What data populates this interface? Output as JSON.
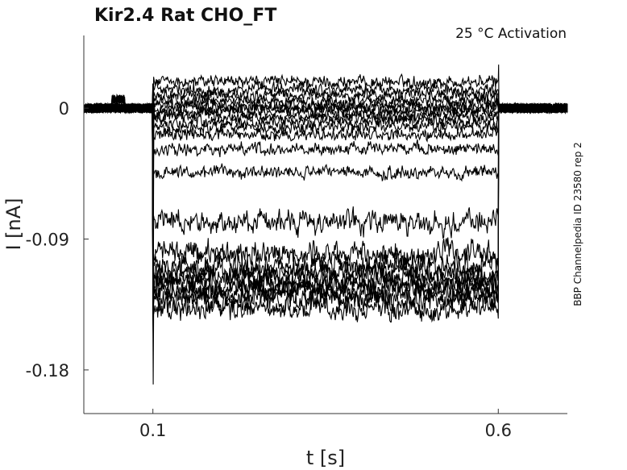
{
  "chart_data": {
    "type": "line",
    "title": "Kir2.4  Rat  CHO_FT",
    "annotation": "25 °C  Activation",
    "side_label": "BBP Channelpedia ID 23580 rep 2",
    "xlabel": "t [s]",
    "ylabel": "I [nA]",
    "xlim": [
      0.0,
      0.7
    ],
    "ylim": [
      -0.21,
      0.05
    ],
    "xticks": [
      0.1,
      0.6
    ],
    "xtick_labels": [
      "0.1",
      "0.6"
    ],
    "yticks": [
      0,
      -0.09,
      -0.18
    ],
    "ytick_labels": [
      "0",
      "-0.09",
      "-0.18"
    ],
    "grid": false,
    "step_window": [
      0.1,
      0.6
    ],
    "step_levels": [
      0.018,
      0.013,
      0.009,
      0.005,
      0.002,
      0.0,
      -0.003,
      -0.006,
      -0.009,
      -0.013,
      -0.018,
      -0.028,
      -0.044,
      -0.078,
      -0.1,
      -0.108,
      -0.113,
      -0.117,
      -0.12,
      -0.124,
      -0.127,
      -0.132,
      -0.138
    ],
    "baseline": 0.0,
    "noise_amplitude": 0.004,
    "onset_spike_min": -0.19,
    "offset_spike_max": 0.03
  }
}
